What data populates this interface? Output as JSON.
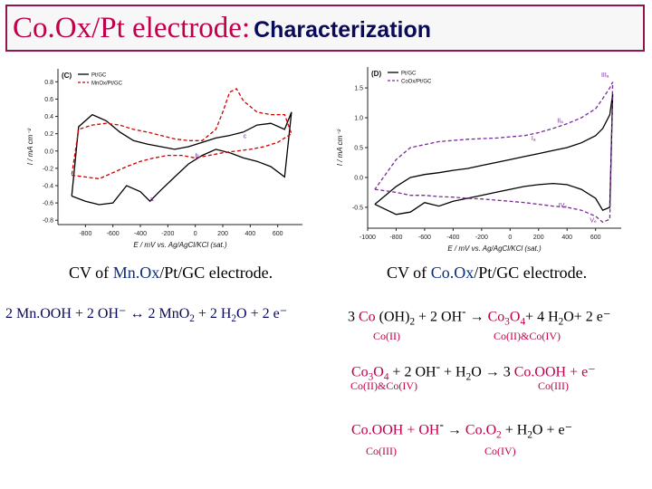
{
  "slide": {
    "title": "Co.Ox/Pt electrode:",
    "subtitle": "Characterization"
  },
  "colors": {
    "accent": "#c0004a",
    "navy": "#0a0a5a",
    "blue": "#0a2f7a"
  },
  "chart_data": [
    {
      "type": "line",
      "panel": "(C)",
      "xlabel": "E / mV vs. Ag/AgCl/KCl (sat.)",
      "ylabel": "I / mA cm⁻²",
      "xlim": [
        -1000,
        780
      ],
      "ylim": [
        -0.85,
        0.95
      ],
      "x_ticks": [
        -800,
        -600,
        -400,
        -200,
        0,
        200,
        400,
        600
      ],
      "y_ticks": [
        -0.8,
        -0.6,
        -0.4,
        -0.2,
        0.0,
        0.2,
        0.4,
        0.6,
        0.8
      ],
      "legend": [
        "Pt/GC",
        "MnOx/Pt/GC"
      ],
      "annotations": [
        {
          "text": "a",
          "x": -330,
          "y": -0.58
        },
        {
          "text": "b",
          "x": 0,
          "y": -0.08
        },
        {
          "text": "c",
          "x": 350,
          "y": 0.15
        }
      ],
      "series": [
        {
          "name": "Pt/GC",
          "style": "solid",
          "color": "#000000",
          "x": [
            -900,
            -800,
            -700,
            -600,
            -500,
            -400,
            -330,
            -250,
            -150,
            -50,
            50,
            150,
            250,
            350,
            450,
            550,
            650,
            700,
            650,
            550,
            450,
            350,
            250,
            150,
            50,
            -50,
            -150,
            -250,
            -350,
            -450,
            -550,
            -650,
            -750,
            -850,
            -900
          ],
          "y": [
            -0.52,
            -0.58,
            -0.62,
            -0.6,
            -0.4,
            -0.47,
            -0.58,
            -0.45,
            -0.3,
            -0.15,
            -0.05,
            0.02,
            -0.02,
            -0.08,
            -0.12,
            -0.18,
            -0.3,
            0.45,
            0.25,
            0.32,
            0.3,
            0.22,
            0.18,
            0.15,
            0.1,
            0.05,
            0.02,
            0.05,
            0.08,
            0.12,
            0.22,
            0.35,
            0.42,
            0.28,
            -0.52
          ]
        },
        {
          "name": "MnOx/Pt/GC",
          "style": "dashed",
          "color": "#cc0000",
          "x": [
            -900,
            -800,
            -700,
            -600,
            -500,
            -400,
            -300,
            -200,
            -100,
            0,
            100,
            200,
            300,
            400,
            500,
            600,
            700,
            650,
            550,
            450,
            350,
            300,
            250,
            200,
            150,
            50,
            -50,
            -150,
            -250,
            -350,
            -450,
            -550,
            -650,
            -750,
            -850,
            -900
          ],
          "y": [
            -0.28,
            -0.3,
            -0.32,
            -0.25,
            -0.18,
            -0.12,
            -0.08,
            -0.05,
            -0.05,
            -0.08,
            -0.05,
            -0.02,
            0.0,
            0.02,
            0.05,
            0.1,
            0.2,
            0.42,
            0.42,
            0.45,
            0.58,
            0.72,
            0.68,
            0.45,
            0.25,
            0.12,
            0.12,
            0.14,
            0.18,
            0.22,
            0.25,
            0.3,
            0.32,
            0.3,
            0.25,
            -0.28
          ]
        }
      ]
    },
    {
      "type": "line",
      "panel": "(D)",
      "xlabel": "E / mV vs. Ag/AgCl/KCl (sat.)",
      "ylabel": "I / mA cm⁻²",
      "xlim": [
        -1000,
        780
      ],
      "ylim": [
        -0.85,
        1.85
      ],
      "x_ticks": [
        -1000,
        -800,
        -600,
        -400,
        -200,
        0,
        200,
        400,
        600
      ],
      "y_ticks": [
        -0.5,
        0.0,
        0.5,
        1.0,
        1.5
      ],
      "legend": [
        "Pt/GC",
        "CoOx/Pt/GC"
      ],
      "annotations": [
        {
          "text": "IIIₐ",
          "x": 640,
          "y": 1.68
        },
        {
          "text": "IIₐ",
          "x": 330,
          "y": 0.92
        },
        {
          "text": "Iₐ",
          "x": 150,
          "y": 0.62
        },
        {
          "text": "IVₑ",
          "x": 340,
          "y": -0.5
        },
        {
          "text": "Vₑ",
          "x": 560,
          "y": -0.75
        }
      ],
      "series": [
        {
          "name": "Pt/GC",
          "style": "solid",
          "color": "#000000",
          "x": [
            -950,
            -800,
            -700,
            -600,
            -500,
            -400,
            -300,
            -200,
            -100,
            0,
            100,
            200,
            300,
            400,
            500,
            600,
            650,
            700,
            720,
            700,
            650,
            600,
            500,
            400,
            300,
            200,
            100,
            0,
            -100,
            -200,
            -300,
            -400,
            -500,
            -600,
            -700,
            -800,
            -950
          ],
          "y": [
            -0.45,
            -0.62,
            -0.58,
            -0.42,
            -0.48,
            -0.4,
            -0.35,
            -0.3,
            -0.25,
            -0.2,
            -0.15,
            -0.12,
            -0.1,
            -0.12,
            -0.2,
            -0.35,
            -0.55,
            -0.5,
            1.4,
            1.05,
            0.82,
            0.7,
            0.58,
            0.5,
            0.45,
            0.4,
            0.35,
            0.3,
            0.25,
            0.2,
            0.15,
            0.12,
            0.08,
            0.05,
            0.0,
            -0.15,
            -0.45
          ]
        },
        {
          "name": "CoOx/Pt/GC",
          "style": "dashed",
          "color": "#7a2a9a",
          "x": [
            -950,
            -800,
            -700,
            -600,
            -500,
            -400,
            -300,
            -200,
            -100,
            0,
            100,
            200,
            300,
            400,
            500,
            600,
            650,
            700,
            720,
            700,
            650,
            600,
            500,
            400,
            300,
            200,
            100,
            0,
            -100,
            -200,
            -300,
            -400,
            -500,
            -600,
            -700,
            -800,
            -950
          ],
          "y": [
            -0.2,
            -0.25,
            -0.3,
            -0.3,
            -0.32,
            -0.33,
            -0.35,
            -0.36,
            -0.38,
            -0.4,
            -0.42,
            -0.45,
            -0.48,
            -0.5,
            -0.55,
            -0.65,
            -0.75,
            -0.7,
            1.6,
            1.5,
            1.32,
            1.15,
            1.0,
            0.9,
            0.82,
            0.75,
            0.7,
            0.68,
            0.66,
            0.65,
            0.64,
            0.62,
            0.6,
            0.55,
            0.5,
            0.3,
            -0.2
          ]
        }
      ]
    }
  ],
  "captions": {
    "left_prefix": "CV of ",
    "left_highlight": "Mn.Ox",
    "left_suffix": "/Pt/GC electrode.",
    "right_prefix": "CV of ",
    "right_highlight": "Co.Ox",
    "right_suffix": "/Pt/GC electrode."
  },
  "equations": {
    "mn": {
      "p1": "2 Mn.OOH + 2 OH⁻ ↔ 2 MnO",
      "s1": "2",
      "p2": " + 2 H",
      "s2": "2",
      "p3": "O + 2 e⁻"
    },
    "co1": {
      "a": "3 ",
      "b": "Co",
      "c": " (OH)",
      "s1": "2",
      "d": " + 2 OH",
      "sup": "-",
      "e": " → ",
      "f": "Co",
      "g": "3",
      "h": "O",
      "s2": "4",
      "i": "+ 4 H",
      "s3": "2",
      "j": "O+ 2 e⁻",
      "label_left": "Co(II)",
      "label_right": "Co(II)&Co(IV)"
    },
    "co2": {
      "a": "Co",
      "s1": "3",
      "b": "O",
      "s2": "4",
      "c": " + 2 OH",
      "sup": "-",
      "d": " + H",
      "s3": "2",
      "e": "O → 3 ",
      "f": "Co",
      "g": ".OOH + e⁻",
      "label_left": "Co(II)&Co(IV)",
      "label_right": "Co(III)"
    },
    "co3": {
      "a": "Co",
      "b": ".OOH + OH",
      "sup": "-",
      "c": "  →  ",
      "d": "Co",
      "e": ".O",
      "s1": "2",
      "f": " + H",
      "s2": "2",
      "g": "O + e⁻",
      "label_left": "Co(III)",
      "label_right": "Co(IV)"
    }
  }
}
